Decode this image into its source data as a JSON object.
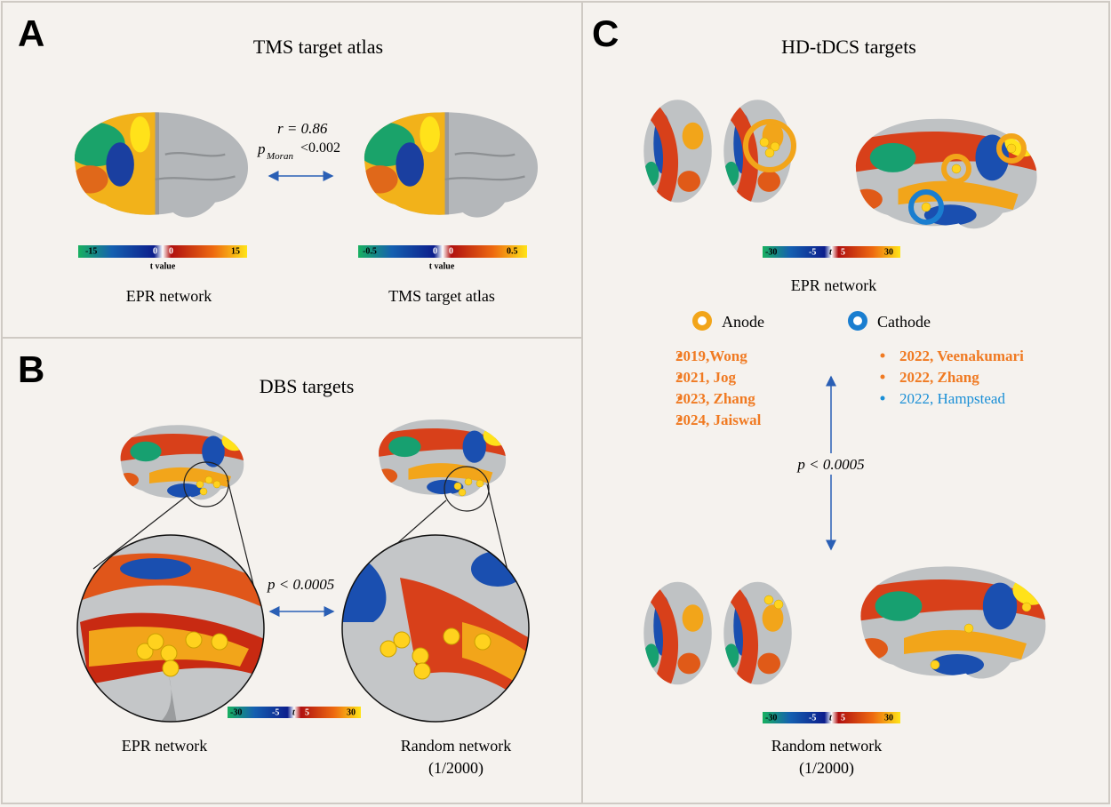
{
  "panel_a": {
    "label": "A",
    "title": "TMS target atlas",
    "r_stat": "r = 0.86",
    "p_symbol": "p",
    "p_subscript": "Moran",
    "p_stat": "<0.002",
    "colorbar_left": {
      "ticks": [
        "-15",
        "0",
        "0",
        "15"
      ],
      "label": "t value"
    },
    "colorbar_right": {
      "ticks": [
        "-0.5",
        "0",
        "0",
        "0.5"
      ],
      "label": "t value"
    },
    "captions": [
      "EPR network",
      "TMS target atlas"
    ]
  },
  "panel_b": {
    "label": "B",
    "title": "DBS targets",
    "p_stat": "p < 0.0005",
    "colorbar": {
      "ticks": [
        "-30",
        "-5",
        "t",
        "5",
        "30"
      ]
    },
    "captions": [
      "EPR network",
      "Random network"
    ],
    "caption_note": "(1/2000)"
  },
  "panel_c": {
    "label": "C",
    "title": "HD-tDCS targets",
    "colorbar_top": {
      "ticks": [
        "-30",
        "-5",
        "t",
        "5",
        "30"
      ]
    },
    "caption_top": "EPR network",
    "legend": [
      {
        "label": "Anode",
        "studies": [
          "2019,Wong",
          "2021, Jog",
          "2023, Zhang",
          "2024, Jaiswal"
        ]
      },
      {
        "label": "Cathode",
        "studies": [
          "2022, Veenakumari",
          "2022, Zhang",
          "2022, Hampstead"
        ]
      }
    ],
    "p_stat": "p < 0.0005",
    "colorbar_bottom": {
      "ticks": [
        "-30",
        "-5",
        "t",
        "5",
        "30"
      ]
    },
    "caption_bottom": "Random network",
    "caption_note": "(1/2000)"
  }
}
